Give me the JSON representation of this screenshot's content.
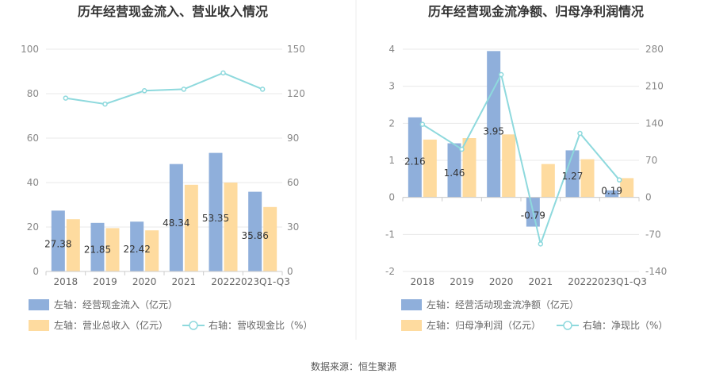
{
  "colors": {
    "bar1": "#8fafdb",
    "bar2": "#fedb9f",
    "line": "#8ed9dd",
    "grid": "#e8e8e8",
    "axis": "#cccccc",
    "divider": "#eeeeee"
  },
  "source": "数据来源：恒生聚源",
  "chart_data": [
    {
      "type": "bar",
      "title": "历年经营现金流入、营业收入情况",
      "categories": [
        "2018",
        "2019",
        "2020",
        "2021",
        "2022",
        "2023Q1-Q3"
      ],
      "left_axis": {
        "min": 0,
        "max": 100,
        "ticks": [
          0,
          20,
          40,
          60,
          80,
          100
        ]
      },
      "right_axis": {
        "min": 0,
        "max": 150,
        "ticks": [
          0,
          30,
          60,
          90,
          120,
          150
        ]
      },
      "series": [
        {
          "name": "左轴：经营现金流入（亿元）",
          "axis": "left",
          "kind": "bar",
          "values": [
            27.38,
            21.85,
            22.42,
            48.34,
            53.35,
            35.86
          ],
          "labels": [
            "27.38",
            "21.85",
            "22.42",
            "48.34",
            "53.35",
            "35.86"
          ]
        },
        {
          "name": "左轴：营业总收入（亿元）",
          "axis": "left",
          "kind": "bar",
          "values": [
            23.5,
            19.5,
            18.5,
            39,
            40,
            29
          ]
        },
        {
          "name": "右轴：营收现金比（%）",
          "axis": "right",
          "kind": "line",
          "values": [
            117,
            113,
            122,
            123,
            134,
            123
          ]
        }
      ]
    },
    {
      "type": "bar",
      "title": "历年经营现金流净额、归母净利润情况",
      "categories": [
        "2018",
        "2019",
        "2020",
        "2021",
        "2022",
        "2023Q1-Q3"
      ],
      "left_axis": {
        "min": -2,
        "max": 4,
        "ticks": [
          -2,
          -1,
          0,
          1,
          2,
          3,
          4
        ]
      },
      "right_axis": {
        "min": -140,
        "max": 280,
        "ticks": [
          -140,
          -70,
          0,
          70,
          140,
          210,
          280
        ]
      },
      "series": [
        {
          "name": "左轴：经营活动现金流净额（亿元）",
          "axis": "left",
          "kind": "bar",
          "values": [
            2.16,
            1.46,
            3.95,
            -0.79,
            1.27,
            0.19
          ],
          "labels": [
            "2.16",
            "1.46",
            "3.95",
            "-0.79",
            "1.27",
            "0.19"
          ]
        },
        {
          "name": "左轴：归母净利润（亿元）",
          "axis": "left",
          "kind": "bar",
          "values": [
            1.56,
            1.6,
            1.7,
            0.9,
            1.03,
            0.52
          ]
        },
        {
          "name": "右轴：净现比（%）",
          "axis": "right",
          "kind": "line",
          "values": [
            138,
            91,
            232,
            -88,
            121,
            33
          ]
        }
      ]
    }
  ]
}
